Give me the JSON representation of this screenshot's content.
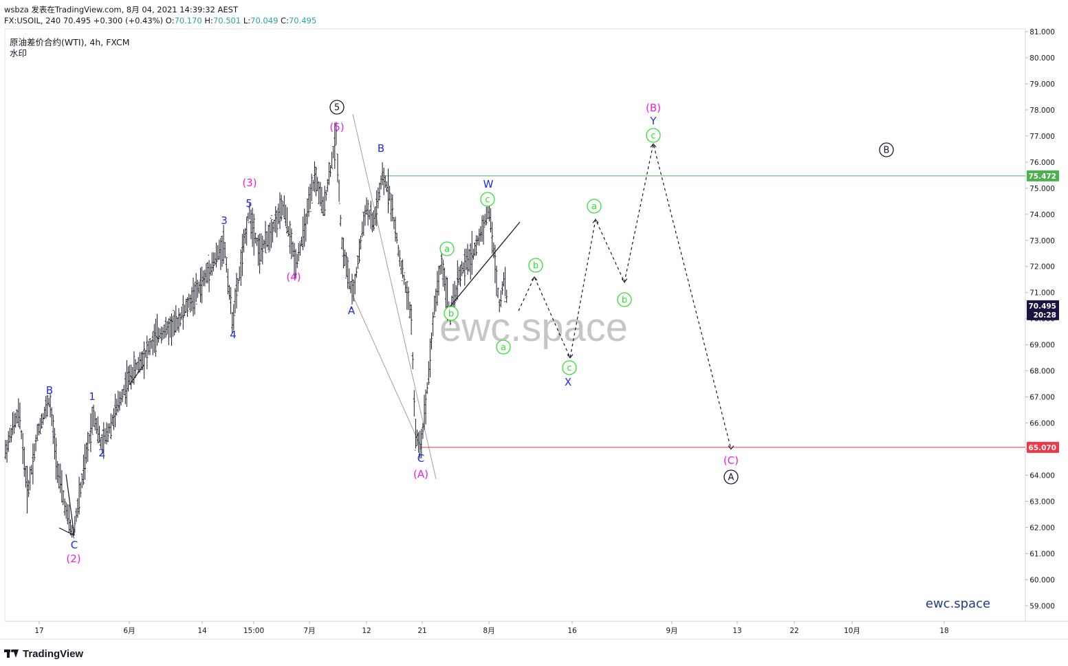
{
  "header": {
    "line1": "wsbza 发表在TradingView.com, 8月 04, 2021 14:39:32 AEST",
    "line2_prefix": "FX:USOIL, 240 70.495 ",
    "change": "+0.300 (+0.43%)",
    "o_label": "O:",
    "o_value": "70.170",
    "h_label": "H:",
    "h_value": "70.501",
    "l_label": "L:",
    "l_value": "70.049",
    "c_label": "C:",
    "c_value": "70.495"
  },
  "symbol": {
    "title": "原油差价合约(WTI), 4h, FXCM",
    "subtitle": "水印"
  },
  "watermark": "ewc.space",
  "brand_text": "ewc.space",
  "footer": {
    "logo_text": "TradingView"
  },
  "colors": {
    "magenta": "#e91ee3",
    "blue": "#1e2be0",
    "green": "#2ee02e",
    "black": "#131722",
    "resistance_line": "#4caf50",
    "support_line": "#f23645",
    "price_tag": "#1a1442",
    "watermark": "#c6c6c6",
    "brand": "#1f3a8a"
  },
  "chart_data": {
    "type": "line",
    "title": "原油差价合约(WTI), 4h, FXCM",
    "symbol": "FX:USOIL",
    "interval": "240",
    "last_price": 70.495,
    "countdown": "20:28",
    "ylim": [
      58.3,
      81.2
    ],
    "y_ticks": [
      "81.000",
      "80.000",
      "79.000",
      "78.000",
      "77.000",
      "76.000",
      "75.000",
      "74.000",
      "73.000",
      "72.000",
      "71.000",
      "70.000",
      "69.000",
      "68.000",
      "67.000",
      "66.000",
      "65.000",
      "64.000",
      "63.000",
      "62.000",
      "61.000",
      "60.000",
      "59.000"
    ],
    "x_ticks": [
      "17",
      "6月",
      "14",
      "15:00",
      "7月",
      "12",
      "21",
      "8月",
      "16",
      "9月",
      "13",
      "22",
      "10月",
      "18"
    ],
    "horizontal_levels": [
      {
        "price": 75.472,
        "label": "75.472"
      },
      {
        "price": 65.07,
        "label": "65.070"
      }
    ],
    "price_series": [
      {
        "t": "17",
        "v": 64.8
      },
      {
        "t": "17+",
        "v": 66.2
      },
      {
        "t": "B",
        "v": 67.0
      },
      {
        "t": "C(2)",
        "v": 61.6
      },
      {
        "t": "1",
        "v": 66.4
      },
      {
        "t": "2",
        "v": 65.1
      },
      {
        "t": "3",
        "v": 72.9
      },
      {
        "t": "4",
        "v": 69.9
      },
      {
        "t": "5",
        "v": 74.0
      },
      {
        "t": "(3)",
        "v": 74.5
      },
      {
        "t": "(4)",
        "v": 72.0
      },
      {
        "t": "(5)",
        "v": 77.0
      },
      {
        "t": "A",
        "v": 70.8
      },
      {
        "t": "B",
        "v": 75.4
      },
      {
        "t": "C(A)",
        "v": 65.1
      },
      {
        "t": "b",
        "v": 70.0
      },
      {
        "t": "W",
        "v": 74.2
      },
      {
        "t": "now",
        "v": 70.495
      }
    ],
    "projection_path": [
      {
        "t": "now",
        "v": 70.3
      },
      {
        "t": "b",
        "v": 71.6
      },
      {
        "t": "c X",
        "v": 68.5
      },
      {
        "t": "a",
        "v": 73.8
      },
      {
        "t": "b",
        "v": 71.4
      },
      {
        "t": "c Y (B)",
        "v": 76.7
      },
      {
        "t": "(C) A",
        "v": 65.0
      }
    ],
    "annotations": [
      {
        "text": "B",
        "color": "blue"
      },
      {
        "text": "C",
        "color": "blue"
      },
      {
        "text": "(2)",
        "color": "magenta"
      },
      {
        "text": "1",
        "color": "blue"
      },
      {
        "text": "2",
        "color": "blue"
      },
      {
        "text": "3",
        "color": "blue"
      },
      {
        "text": "4",
        "color": "blue"
      },
      {
        "text": "5",
        "color": "blue"
      },
      {
        "text": "(3)",
        "color": "magenta"
      },
      {
        "text": "(4)",
        "color": "magenta"
      },
      {
        "text": "(5)",
        "color": "magenta"
      },
      {
        "text": "5",
        "color": "circled-black"
      },
      {
        "text": "A",
        "color": "blue"
      },
      {
        "text": "B",
        "color": "blue"
      },
      {
        "text": "C",
        "color": "blue"
      },
      {
        "text": "(A)",
        "color": "magenta"
      },
      {
        "text": "a",
        "color": "circled-green"
      },
      {
        "text": "b",
        "color": "circled-green"
      },
      {
        "text": "c",
        "color": "circled-green"
      },
      {
        "text": "W",
        "color": "blue"
      },
      {
        "text": "a",
        "color": "circled-green"
      },
      {
        "text": "b",
        "color": "circled-green"
      },
      {
        "text": "c",
        "color": "circled-green"
      },
      {
        "text": "X",
        "color": "blue"
      },
      {
        "text": "a",
        "color": "circled-green"
      },
      {
        "text": "b",
        "color": "circled-green"
      },
      {
        "text": "c",
        "color": "circled-green"
      },
      {
        "text": "Y",
        "color": "blue"
      },
      {
        "text": "(B)",
        "color": "magenta"
      },
      {
        "text": "B",
        "color": "circled-black"
      },
      {
        "text": "(C)",
        "color": "magenta"
      },
      {
        "text": "A",
        "color": "circled-black"
      }
    ]
  }
}
